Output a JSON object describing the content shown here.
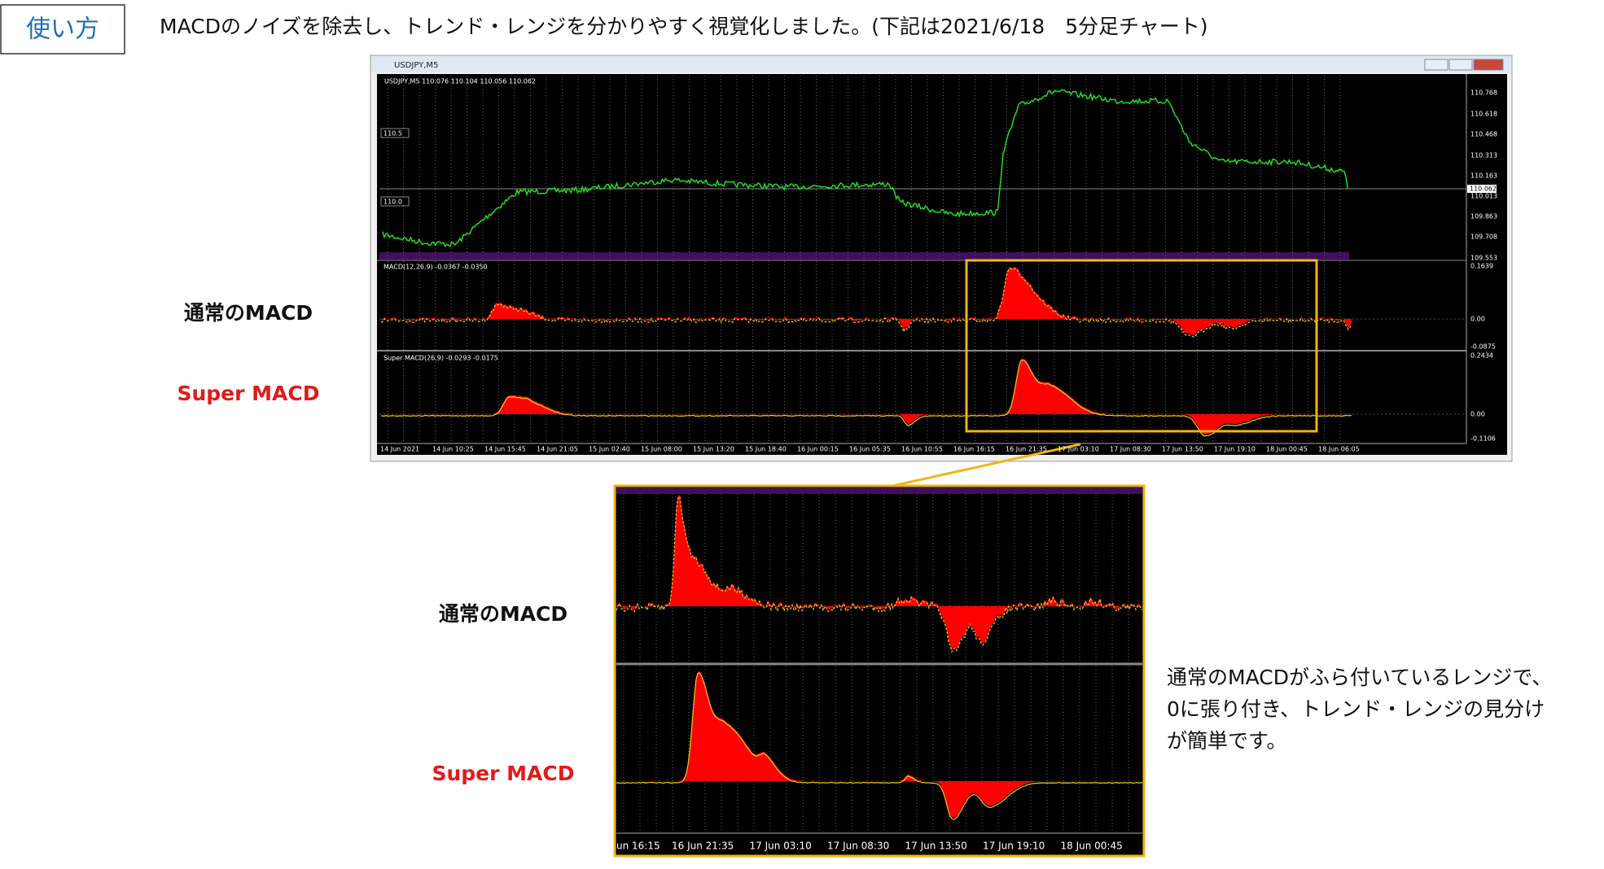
{
  "header": {
    "label": "使い方",
    "description": "MACDのノイズを除去し、トレンド・レンジを分かりやすく視覚化しました。(下記は2021/6/18　5分足チャート)"
  },
  "main_chart": {
    "window_title": "USDJPY,M5",
    "symbol_info": "USDJPY,M5  110.076 110.104 110.056 110.062",
    "price_levels": [
      "110.5",
      "110.0"
    ],
    "price_ticks": [
      "110.768",
      "110.618",
      "110.468",
      "110.313",
      "110.163",
      "110.013",
      "109.863",
      "109.708",
      "109.553"
    ],
    "current_price": "110.062",
    "macd_title": "MACD(12,26,9) -0.0367 -0.0350",
    "macd_ticks": [
      "0.1639",
      "0.00",
      "-0.0875"
    ],
    "super_title": "Super MACD(26,9) -0.0293 -0.0175",
    "super_ticks": [
      "0.2434",
      "0.00",
      "-0.1106"
    ],
    "time_labels": [
      "14 Jun 2021",
      "14 Jun 10:25",
      "14 Jun 15:45",
      "14 Jun 21:05",
      "15 Jun 02:40",
      "15 Jun 08:00",
      "15 Jun 13:20",
      "15 Jun 18:40",
      "16 Jun 00:15",
      "16 Jun 05:35",
      "16 Jun 10:55",
      "16 Jun 16:15",
      "16 Jun 21:35",
      "17 Jun 03:10",
      "17 Jun 08:30",
      "17 Jun 13:50",
      "17 Jun 19:10",
      "18 Jun 00:45",
      "18 Jun 06:05"
    ]
  },
  "labels": {
    "normal_macd": "通常のMACD",
    "super_macd": "Super MACD"
  },
  "zoom": {
    "normal_macd": "通常のMACD",
    "super_macd": "Super MACD",
    "time_labels": [
      "un 16:15",
      "16 Jun 21:35",
      "17 Jun 03:10",
      "17 Jun 08:30",
      "17 Jun 13:50",
      "17 Jun 19:10",
      "18 Jun 00:45"
    ]
  },
  "note": [
    "通常のMACDがふら付いているレンジで、",
    "0に張り付き、トレンド・レンジの見分け",
    "が簡単です。"
  ]
}
